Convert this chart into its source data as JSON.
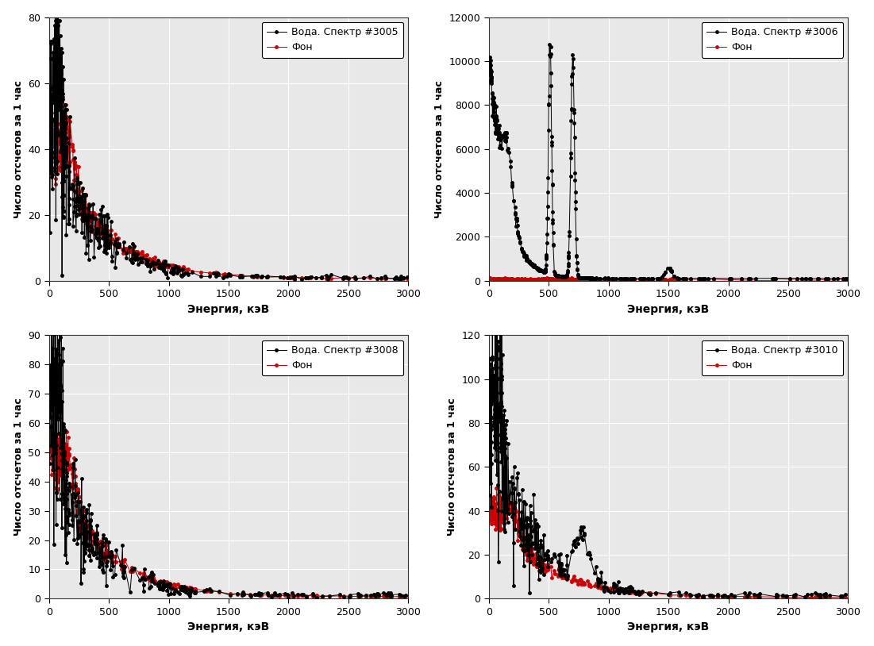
{
  "subplots": [
    {
      "legend_main": "Вода. Спектр #3005",
      "legend_bg": "Фон",
      "ylabel": "Число отсчетов за 1 час",
      "xlabel": "Энергия, кэВ",
      "ylim": [
        0,
        80
      ],
      "yticks": [
        0,
        20,
        40,
        60,
        80
      ],
      "xlim": [
        0,
        3000
      ],
      "xticks": [
        0,
        500,
        1000,
        1500,
        2000,
        2500,
        3000
      ],
      "main_color": "#000000",
      "bg_color": "#cc0000"
    },
    {
      "legend_main": "Вода. Спектр #3006",
      "legend_bg": "Фон",
      "ylabel": "Число отсчетов за 1 час",
      "xlabel": "Энергия, кэВ",
      "ylim": [
        0,
        12000
      ],
      "yticks": [
        0,
        2000,
        4000,
        6000,
        8000,
        10000,
        12000
      ],
      "xlim": [
        0,
        3000
      ],
      "xticks": [
        0,
        500,
        1000,
        1500,
        2000,
        2500,
        3000
      ],
      "main_color": "#000000",
      "bg_color": "#cc0000"
    },
    {
      "legend_main": "Вода. Спектр #3008",
      "legend_bg": "Фон",
      "ylabel": "Число отсчетов за 1 час",
      "xlabel": "Энергия, кэВ",
      "ylim": [
        0,
        90
      ],
      "yticks": [
        0,
        10,
        20,
        30,
        40,
        50,
        60,
        70,
        80,
        90
      ],
      "xlim": [
        0,
        3000
      ],
      "xticks": [
        0,
        500,
        1000,
        1500,
        2000,
        2500,
        3000
      ],
      "main_color": "#000000",
      "bg_color": "#cc0000"
    },
    {
      "legend_main": "Вода. Спектр #3010",
      "legend_bg": "Фон",
      "ylabel": "Число отсчетов за 1 час",
      "xlabel": "Энергия, кэВ",
      "ylim": [
        0,
        120
      ],
      "yticks": [
        0,
        20,
        40,
        60,
        80,
        100,
        120
      ],
      "xlim": [
        0,
        3000
      ],
      "xticks": [
        0,
        500,
        1000,
        1500,
        2000,
        2500,
        3000
      ],
      "main_color": "#000000",
      "bg_color": "#cc0000"
    }
  ],
  "fig_bgcolor": "#ffffff",
  "axes_facecolor": "#e8e8e8",
  "grid_color": "#ffffff",
  "marker_size": 2.5,
  "linewidth": 0.7,
  "legend_fontsize": 9,
  "axis_fontsize": 10,
  "tick_fontsize": 9
}
